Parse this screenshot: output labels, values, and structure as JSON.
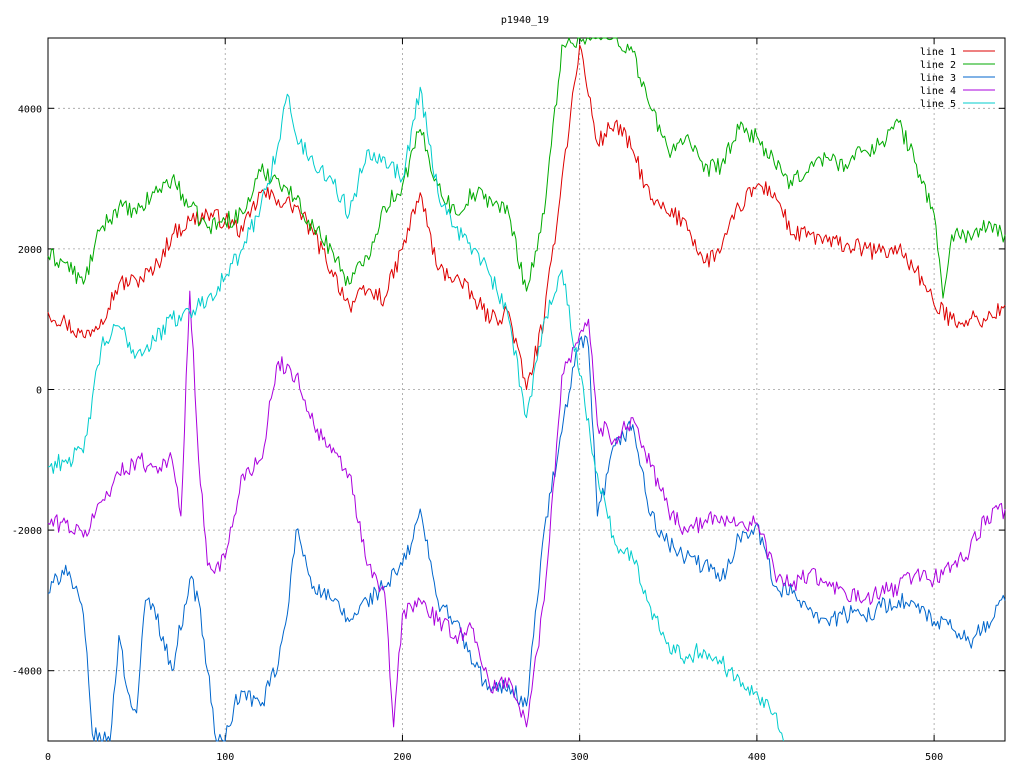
{
  "chart_data": {
    "type": "line",
    "title": "p1940_19",
    "xlabel": "",
    "ylabel": "",
    "xlim": [
      0,
      540
    ],
    "ylim": [
      -5000,
      5000
    ],
    "x_ticks": [
      0,
      100,
      200,
      300,
      400,
      500
    ],
    "y_ticks": [
      -4000,
      -2000,
      0,
      2000,
      4000
    ],
    "x_tick_labels": [
      "0",
      "100",
      "200",
      "300",
      "400",
      "500"
    ],
    "y_tick_labels": [
      "-4000",
      "-2000",
      "0",
      "2000",
      "4000"
    ],
    "grid": true,
    "legend_position": "top-right",
    "series": [
      {
        "name": "line 1",
        "color": "#dd0000",
        "x": [
          0,
          10,
          20,
          30,
          40,
          50,
          60,
          70,
          80,
          90,
          100,
          110,
          120,
          130,
          140,
          150,
          160,
          170,
          180,
          190,
          200,
          210,
          220,
          230,
          240,
          250,
          260,
          270,
          280,
          290,
          300,
          310,
          320,
          330,
          340,
          350,
          360,
          370,
          380,
          390,
          400,
          410,
          420,
          430,
          440,
          450,
          460,
          470,
          480,
          490,
          500,
          510,
          520,
          530,
          540
        ],
        "y": [
          1100,
          950,
          750,
          1000,
          1500,
          1550,
          1700,
          2200,
          2400,
          2500,
          2400,
          2250,
          2800,
          2700,
          2600,
          2200,
          1700,
          1200,
          1400,
          1300,
          2000,
          2800,
          1700,
          1600,
          1300,
          1000,
          1100,
          0,
          1000,
          3000,
          4900,
          3500,
          3800,
          3400,
          2700,
          2500,
          2400,
          1800,
          2000,
          2600,
          2900,
          2800,
          2200,
          2200,
          2100,
          2050,
          2000,
          1950,
          2000,
          1700,
          1200,
          1000,
          1000,
          1000,
          1200
        ]
      },
      {
        "name": "line 2",
        "color": "#00aa00",
        "x": [
          0,
          10,
          20,
          30,
          40,
          50,
          60,
          70,
          80,
          90,
          100,
          110,
          120,
          130,
          140,
          150,
          160,
          170,
          180,
          190,
          200,
          210,
          220,
          230,
          240,
          250,
          260,
          270,
          280,
          290,
          300,
          310,
          320,
          330,
          340,
          350,
          360,
          370,
          380,
          390,
          400,
          410,
          420,
          430,
          440,
          450,
          460,
          470,
          480,
          490,
          500,
          505,
          510,
          520,
          530,
          540
        ],
        "y": [
          1900,
          1800,
          1500,
          2300,
          2600,
          2500,
          2800,
          3000,
          2600,
          2300,
          2400,
          2500,
          3100,
          3000,
          2700,
          2300,
          2000,
          1500,
          1900,
          2600,
          2900,
          3700,
          2900,
          2500,
          2800,
          2700,
          2500,
          1400,
          2500,
          4900,
          5000,
          5000,
          5000,
          4800,
          4000,
          3400,
          3600,
          3100,
          3200,
          3700,
          3600,
          3200,
          2900,
          3200,
          3300,
          3200,
          3400,
          3500,
          3800,
          3200,
          2500,
          1300,
          2200,
          2200,
          2300,
          2200
        ]
      },
      {
        "name": "line 3",
        "color": "#0066cc",
        "x": [
          0,
          10,
          20,
          25,
          30,
          35,
          40,
          45,
          50,
          55,
          60,
          70,
          80,
          85,
          90,
          95,
          100,
          105,
          110,
          120,
          130,
          135,
          140,
          150,
          160,
          170,
          180,
          190,
          200,
          205,
          210,
          215,
          220,
          230,
          240,
          250,
          260,
          270,
          280,
          290,
          300,
          305,
          310,
          320,
          330,
          340,
          350,
          360,
          370,
          380,
          390,
          400,
          410,
          420,
          430,
          440,
          450,
          460,
          470,
          480,
          490,
          500,
          510,
          520,
          530,
          540
        ],
        "y": [
          -2900,
          -2500,
          -3200,
          -4900,
          -5000,
          -5000,
          -3500,
          -4300,
          -4600,
          -3000,
          -3100,
          -4000,
          -2700,
          -3000,
          -4000,
          -5000,
          -5000,
          -4500,
          -4300,
          -4500,
          -3900,
          -3200,
          -2000,
          -2800,
          -3000,
          -3300,
          -3000,
          -2800,
          -2500,
          -2200,
          -1700,
          -2400,
          -3000,
          -3300,
          -3900,
          -4300,
          -4200,
          -4500,
          -2000,
          -600,
          700,
          600,
          -1800,
          -800,
          -500,
          -1800,
          -2200,
          -2400,
          -2500,
          -2700,
          -2100,
          -1900,
          -2800,
          -2900,
          -3100,
          -3300,
          -3200,
          -3200,
          -3100,
          -3000,
          -3100,
          -3300,
          -3400,
          -3600,
          -3300,
          -3000
        ]
      },
      {
        "name": "line 4",
        "color": "#aa00dd",
        "x": [
          0,
          10,
          20,
          30,
          40,
          50,
          60,
          70,
          75,
          80,
          85,
          90,
          95,
          100,
          110,
          120,
          130,
          140,
          150,
          160,
          170,
          180,
          190,
          195,
          200,
          210,
          220,
          230,
          240,
          250,
          260,
          270,
          280,
          290,
          300,
          305,
          310,
          320,
          330,
          340,
          350,
          360,
          370,
          380,
          390,
          400,
          410,
          420,
          430,
          440,
          450,
          460,
          470,
          480,
          490,
          500,
          510,
          520,
          530,
          540
        ],
        "y": [
          -1900,
          -1900,
          -2100,
          -1600,
          -1200,
          -1000,
          -1100,
          -1000,
          -1800,
          1400,
          -1000,
          -2500,
          -2500,
          -2400,
          -1200,
          -1000,
          400,
          200,
          -500,
          -900,
          -1200,
          -2500,
          -2900,
          -4800,
          -3200,
          -3000,
          -3300,
          -3500,
          -3400,
          -4300,
          -4100,
          -4800,
          -3000,
          200,
          800,
          1000,
          -500,
          -700,
          -400,
          -1100,
          -1700,
          -2000,
          -1900,
          -1800,
          -1900,
          -1900,
          -2600,
          -2800,
          -2600,
          -2800,
          -2900,
          -3000,
          -2900,
          -2800,
          -2600,
          -2700,
          -2500,
          -2300,
          -1800,
          -1700
        ]
      },
      {
        "name": "line 5",
        "color": "#00cccc",
        "x": [
          0,
          10,
          20,
          30,
          40,
          50,
          60,
          70,
          80,
          90,
          100,
          110,
          120,
          130,
          135,
          140,
          150,
          160,
          170,
          180,
          190,
          200,
          210,
          220,
          230,
          240,
          250,
          260,
          270,
          280,
          290,
          300,
          310,
          320,
          330,
          340,
          350,
          360,
          370,
          380,
          390,
          400,
          410,
          415
        ],
        "y": [
          -1100,
          -1000,
          -900,
          600,
          900,
          500,
          700,
          1000,
          1100,
          1300,
          1600,
          2000,
          2600,
          3500,
          4200,
          3600,
          3200,
          3000,
          2500,
          3400,
          3300,
          3000,
          4300,
          2800,
          2300,
          2000,
          1600,
          1000,
          -400,
          1000,
          1700,
          200,
          -1200,
          -2200,
          -2400,
          -3100,
          -3600,
          -3800,
          -3700,
          -3900,
          -4100,
          -4300,
          -4600,
          -5000
        ]
      }
    ]
  }
}
